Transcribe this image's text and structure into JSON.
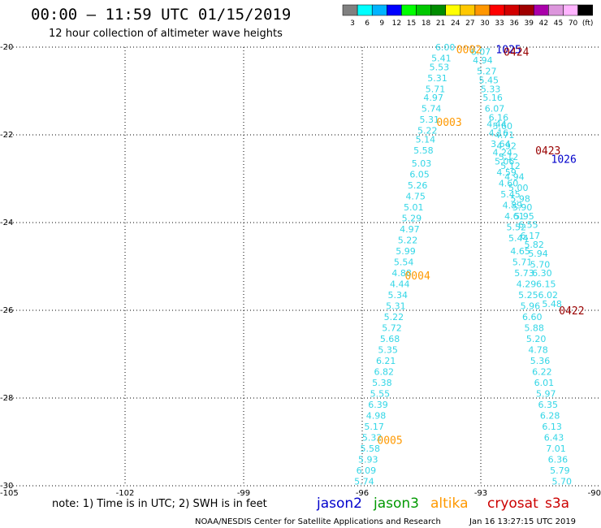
{
  "chart_data": {
    "type": "scatter",
    "title": "00:00 – 11:59 UTC 01/15/2019",
    "subtitle": "12 hour collection of altimeter wave heights",
    "xlim": [
      -105,
      -90
    ],
    "ylim": [
      -30,
      -20
    ],
    "x_ticks": [
      -105,
      -102,
      -99,
      -96,
      -93,
      -90
    ],
    "x_tick_labels": [
      "-105",
      "-102",
      "-99",
      "-96",
      "-93",
      "-90"
    ],
    "y_ticks": [
      -20,
      -22,
      -24,
      -26,
      -28,
      -30
    ],
    "y_tick_labels": [
      "-20",
      "-22",
      "-24",
      "-26",
      "-28",
      "-30"
    ],
    "grid": true,
    "colorbar": {
      "labels": [
        "3",
        "6",
        "9",
        "12",
        "15",
        "18",
        "21",
        "24",
        "27",
        "30",
        "33",
        "36",
        "39",
        "42",
        "45",
        "70",
        "(ft)"
      ],
      "colors": [
        "#808080",
        "#00ffff",
        "#00b4ff",
        "#0000ff",
        "#00ff00",
        "#00c800",
        "#008c00",
        "#ffff00",
        "#ffc800",
        "#ff9600",
        "#ff0000",
        "#d20000",
        "#a00000",
        "#aa00aa",
        "#dc96dc",
        "#ffb4ff",
        "#000000"
      ]
    },
    "series": [
      {
        "name": "altika",
        "color": "#33d6e6",
        "points": [
          {
            "x": -93.9,
            "y": -20.0,
            "v": "6.00"
          },
          {
            "x": -94.0,
            "y": -20.25,
            "v": "5.41"
          },
          {
            "x": -94.05,
            "y": -20.45,
            "v": "5.53"
          },
          {
            "x": -94.1,
            "y": -20.7,
            "v": "5.31"
          },
          {
            "x": -94.15,
            "y": -20.95,
            "v": "5.71"
          },
          {
            "x": -94.2,
            "y": -21.15,
            "v": "4.97"
          },
          {
            "x": -94.25,
            "y": -21.4,
            "v": "5.74"
          },
          {
            "x": -94.3,
            "y": -21.65,
            "v": "5.31"
          },
          {
            "x": -94.35,
            "y": -21.9,
            "v": "5.22"
          },
          {
            "x": -94.4,
            "y": -22.1,
            "v": "5.14"
          },
          {
            "x": -94.45,
            "y": -22.35,
            "v": "5.58"
          },
          {
            "x": -94.5,
            "y": -22.65,
            "v": "5.03"
          },
          {
            "x": -94.55,
            "y": -22.9,
            "v": "6.05"
          },
          {
            "x": -94.6,
            "y": -23.15,
            "v": "5.26"
          },
          {
            "x": -94.65,
            "y": -23.4,
            "v": "4.75"
          },
          {
            "x": -94.7,
            "y": -23.65,
            "v": "5.01"
          },
          {
            "x": -94.75,
            "y": -23.9,
            "v": "5.29"
          },
          {
            "x": -94.8,
            "y": -24.15,
            "v": "4.97"
          },
          {
            "x": -94.85,
            "y": -24.4,
            "v": "5.22"
          },
          {
            "x": -94.9,
            "y": -24.65,
            "v": "5.99"
          },
          {
            "x": -94.95,
            "y": -24.9,
            "v": "5.54"
          },
          {
            "x": -95.0,
            "y": -25.15,
            "v": "4.88"
          },
          {
            "x": -95.05,
            "y": -25.4,
            "v": "4.44"
          },
          {
            "x": -95.1,
            "y": -25.65,
            "v": "5.34"
          },
          {
            "x": -95.15,
            "y": -25.9,
            "v": "5.31"
          },
          {
            "x": -95.2,
            "y": -26.15,
            "v": "5.22"
          },
          {
            "x": -95.25,
            "y": -26.4,
            "v": "5.72"
          },
          {
            "x": -95.3,
            "y": -26.65,
            "v": "5.68"
          },
          {
            "x": -95.35,
            "y": -26.9,
            "v": "5.35"
          },
          {
            "x": -95.4,
            "y": -27.15,
            "v": "6.21"
          },
          {
            "x": -95.45,
            "y": -27.4,
            "v": "6.82"
          },
          {
            "x": -95.5,
            "y": -27.65,
            "v": "5.38"
          },
          {
            "x": -95.55,
            "y": -27.9,
            "v": "5.55"
          },
          {
            "x": -95.6,
            "y": -28.15,
            "v": "6.39"
          },
          {
            "x": -95.65,
            "y": -28.4,
            "v": "4.98"
          },
          {
            "x": -95.7,
            "y": -28.65,
            "v": "5.17"
          },
          {
            "x": -95.75,
            "y": -28.9,
            "v": "5.32"
          },
          {
            "x": -95.8,
            "y": -29.15,
            "v": "5.58"
          },
          {
            "x": -95.85,
            "y": -29.4,
            "v": "5.93"
          },
          {
            "x": -95.9,
            "y": -29.65,
            "v": "6.09"
          },
          {
            "x": -95.95,
            "y": -29.9,
            "v": "5.74"
          }
        ]
      },
      {
        "name": "jason3",
        "color": "#33d6e6",
        "points": [
          {
            "x": -93.0,
            "y": -20.1,
            "v": "6.07"
          },
          {
            "x": -92.95,
            "y": -20.3,
            "v": "4.94"
          },
          {
            "x": -92.85,
            "y": -20.55,
            "v": "5.27"
          },
          {
            "x": -92.8,
            "y": -20.75,
            "v": "5.45"
          },
          {
            "x": -92.75,
            "y": -20.95,
            "v": "5.33"
          },
          {
            "x": -92.7,
            "y": -21.15,
            "v": "5.16"
          },
          {
            "x": -92.65,
            "y": -21.4,
            "v": "6.07"
          },
          {
            "x": -92.55,
            "y": -21.6,
            "v": "6.16"
          },
          {
            "x": -92.45,
            "y": -21.8,
            "v": "5.60"
          },
          {
            "x": -92.4,
            "y": -22.0,
            "v": "4.71"
          },
          {
            "x": -92.35,
            "y": -22.25,
            "v": "4.92"
          },
          {
            "x": -92.3,
            "y": -22.5,
            "v": "5.12"
          },
          {
            "x": -92.25,
            "y": -22.7,
            "v": "5.12"
          },
          {
            "x": -92.15,
            "y": -22.95,
            "v": "4.94"
          },
          {
            "x": -92.05,
            "y": -23.2,
            "v": "5.00"
          },
          {
            "x": -92.0,
            "y": -23.45,
            "v": "5.98"
          },
          {
            "x": -91.95,
            "y": -23.65,
            "v": "5.90"
          },
          {
            "x": -91.9,
            "y": -23.85,
            "v": "5.95"
          },
          {
            "x": -91.8,
            "y": -24.05,
            "v": "6.55"
          },
          {
            "x": -91.75,
            "y": -24.3,
            "v": "6.17"
          },
          {
            "x": -91.65,
            "y": -24.5,
            "v": "5.82"
          },
          {
            "x": -91.55,
            "y": -24.7,
            "v": "5.94"
          },
          {
            "x": -91.5,
            "y": -24.95,
            "v": "5.70"
          },
          {
            "x": -91.45,
            "y": -25.15,
            "v": "6.30"
          },
          {
            "x": -91.35,
            "y": -25.4,
            "v": "6.15"
          },
          {
            "x": -91.3,
            "y": -25.65,
            "v": "6.02"
          },
          {
            "x": -91.2,
            "y": -25.85,
            "v": "5.48"
          }
        ]
      },
      {
        "name": "jason2",
        "color": "#33d6e6",
        "points": [
          {
            "x": -92.6,
            "y": -21.75,
            "v": "4.44"
          },
          {
            "x": -92.55,
            "y": -21.95,
            "v": "4.16"
          },
          {
            "x": -92.5,
            "y": -22.2,
            "v": "3.64"
          },
          {
            "x": -92.45,
            "y": -22.4,
            "v": "4.24"
          },
          {
            "x": -92.4,
            "y": -22.6,
            "v": "5.06"
          },
          {
            "x": -92.35,
            "y": -22.85,
            "v": "4.59"
          },
          {
            "x": -92.3,
            "y": -23.1,
            "v": "4.60"
          },
          {
            "x": -92.25,
            "y": -23.35,
            "v": "5.45"
          },
          {
            "x": -92.2,
            "y": -23.6,
            "v": "4.89"
          },
          {
            "x": -92.15,
            "y": -23.85,
            "v": "4.61"
          },
          {
            "x": -92.1,
            "y": -24.1,
            "v": "5.52"
          },
          {
            "x": -92.05,
            "y": -24.35,
            "v": "5.44"
          },
          {
            "x": -92.0,
            "y": -24.65,
            "v": "4.65"
          },
          {
            "x": -91.95,
            "y": -24.9,
            "v": "5.71"
          },
          {
            "x": -91.9,
            "y": -25.15,
            "v": "5.73"
          },
          {
            "x": -91.85,
            "y": -25.4,
            "v": "4.29"
          },
          {
            "x": -91.8,
            "y": -25.65,
            "v": "5.25"
          },
          {
            "x": -91.75,
            "y": -25.9,
            "v": "5.96"
          },
          {
            "x": -91.7,
            "y": -26.15,
            "v": "6.60"
          },
          {
            "x": -91.65,
            "y": -26.4,
            "v": "5.88"
          },
          {
            "x": -91.6,
            "y": -26.65,
            "v": "5.20"
          },
          {
            "x": -91.55,
            "y": -26.9,
            "v": "4.78"
          },
          {
            "x": -91.5,
            "y": -27.15,
            "v": "5.36"
          },
          {
            "x": -91.45,
            "y": -27.4,
            "v": "6.22"
          },
          {
            "x": -91.4,
            "y": -27.65,
            "v": "6.01"
          },
          {
            "x": -91.35,
            "y": -27.9,
            "v": "5.97"
          },
          {
            "x": -91.3,
            "y": -28.15,
            "v": "6.35"
          },
          {
            "x": -91.25,
            "y": -28.4,
            "v": "6.28"
          },
          {
            "x": -91.2,
            "y": -28.65,
            "v": "6.13"
          },
          {
            "x": -91.15,
            "y": -28.9,
            "v": "6.43"
          },
          {
            "x": -91.1,
            "y": -29.15,
            "v": "7.01"
          },
          {
            "x": -91.05,
            "y": -29.4,
            "v": "6.36"
          },
          {
            "x": -91.0,
            "y": -29.65,
            "v": "5.79"
          },
          {
            "x": -90.95,
            "y": -29.9,
            "v": "5.70"
          }
        ]
      }
    ],
    "pass_labels": [
      {
        "x": -93.3,
        "y": -20.05,
        "text": "0002",
        "color": "#ff9900"
      },
      {
        "x": -92.3,
        "y": -20.05,
        "text": "1025",
        "color": "#0000cc"
      },
      {
        "x": -92.1,
        "y": -20.1,
        "text": "0424",
        "color": "#990000"
      },
      {
        "x": -93.8,
        "y": -21.7,
        "text": "0003",
        "color": "#ff9900"
      },
      {
        "x": -91.3,
        "y": -22.35,
        "text": "0423",
        "color": "#990000"
      },
      {
        "x": -90.9,
        "y": -22.55,
        "text": "1026",
        "color": "#0000cc"
      },
      {
        "x": -94.6,
        "y": -25.2,
        "text": "0004",
        "color": "#ff9900"
      },
      {
        "x": -90.7,
        "y": -26.0,
        "text": "0422",
        "color": "#990000"
      },
      {
        "x": -95.3,
        "y": -28.95,
        "text": "0005",
        "color": "#ff9900"
      }
    ],
    "legend": [
      {
        "text": "jason2",
        "color": "#0000cc"
      },
      {
        "text": "jason3",
        "color": "#009900"
      },
      {
        "text": "altika",
        "color": "#ff9900"
      },
      {
        "text": "cryosat",
        "color": "#cc0000"
      },
      {
        "text": "s3a",
        "color": "#cc0000"
      }
    ],
    "legend_position": "bottom"
  },
  "note": "note: 1) Time is in UTC; 2) SWH is in feet",
  "credit_left": "NOAA/NESDIS Center for Satellite Applications and Research",
  "credit_right": "Jan 16 13:27:15 UTC 2019"
}
